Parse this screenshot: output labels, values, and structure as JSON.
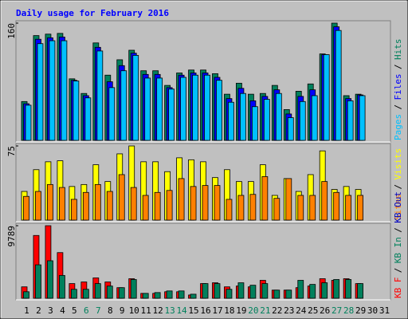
{
  "chart_data": {
    "type": "bar",
    "title": "Daily usage for February 2016",
    "categories": [
      "1",
      "2",
      "3",
      "4",
      "5",
      "6",
      "7",
      "8",
      "9",
      "10",
      "11",
      "12",
      "13",
      "14",
      "15",
      "16",
      "17",
      "18",
      "19",
      "20",
      "21",
      "22",
      "23",
      "24",
      "25",
      "26",
      "27",
      "28",
      "29",
      "30",
      "31"
    ],
    "weekend_days": [
      6,
      7,
      13,
      14,
      20,
      21,
      27,
      28
    ],
    "weekday_color": "#000000",
    "weekend_color": "#00805c",
    "separator": "/",
    "panels": [
      {
        "ylim": [
          0,
          160
        ],
        "yticks": [
          160
        ],
        "series": [
          {
            "name": "Hits",
            "color": "#00805c",
            "values": [
              53,
              143,
              145,
              146,
              84,
              64,
              133,
              89,
              110,
              123,
              95,
              95,
              75,
              92,
              96,
              96,
              91,
              63,
              78,
              63,
              64,
              75,
              42,
              67,
              77,
              118,
              160,
              61,
              63
            ]
          },
          {
            "name": "Files",
            "color": "#0000ff",
            "values": [
              50,
              138,
              140,
              141,
              82,
              61,
              127,
              80,
              102,
              119,
              90,
              90,
              72,
              89,
              92,
              92,
              86,
              57,
              71,
              54,
              60,
              69,
              36,
              60,
              69,
              117,
              155,
              57,
              62
            ]
          },
          {
            "name": "Pages",
            "color": "#00c0ff",
            "values": [
              48,
              132,
              136,
              136,
              81,
              58,
              122,
              72,
              95,
              116,
              85,
              85,
              70,
              86,
              89,
              89,
              82,
              52,
              64,
              46,
              56,
              64,
              31,
              53,
              61,
              117,
              150,
              54,
              61
            ]
          }
        ],
        "legend_order": [
          2,
          1,
          0
        ]
      },
      {
        "ylim": [
          0,
          75
        ],
        "yticks": [
          75
        ],
        "series": [
          {
            "name": "Visits",
            "color": "#ffff00",
            "values": [
              29,
              51,
              59,
              60,
              34,
              36,
              56,
              39,
              67,
              75,
              59,
              59,
              49,
              63,
              61,
              59,
              43,
              51,
              39,
              39,
              56,
              25,
              42,
              29,
              46,
              70,
              31,
              34,
              31
            ]
          },
          {
            "name": "Sites",
            "color": "#ff8000",
            "values": [
              24,
              29,
              36,
              33,
              21,
              28,
              36,
              29,
              46,
              33,
              25,
              28,
              30,
              42,
              34,
              35,
              35,
              21,
              25,
              26,
              44,
              22,
              42,
              25,
              25,
              39,
              28,
              25,
              25
            ]
          }
        ],
        "legend_order": [
          1,
          0
        ]
      },
      {
        "ylim": [
          0,
          9789
        ],
        "yticks": [
          9789
        ],
        "series": [
          {
            "name": "KB F",
            "color": "#ff0000",
            "values": [
              1540,
              8470,
              9789,
              6160,
              1980,
              2200,
              2750,
              2200,
              1430,
              2640,
              660,
              660,
              880,
              880,
              440,
              1980,
              2090,
              1540,
              1650,
              1540,
              2420,
              1100,
              1100,
              1430,
              1650,
              2640,
              2420,
              2640,
              1980
            ]
          },
          {
            "name": "KB In",
            "color": "#00805c",
            "values": [
              880,
              4510,
              5060,
              3080,
              1210,
              1210,
              1980,
              1650,
              1430,
              2530,
              660,
              770,
              990,
              990,
              550,
              1980,
              1980,
              1210,
              2090,
              1760,
              1980,
              1100,
              1100,
              2420,
              1870,
              2090,
              2530,
              2530,
              1980
            ]
          }
        ],
        "legend_order": [
          0,
          1
        ],
        "legend_extra": [
          {
            "name": "KB Out",
            "color": "#0000c0"
          }
        ]
      }
    ]
  }
}
